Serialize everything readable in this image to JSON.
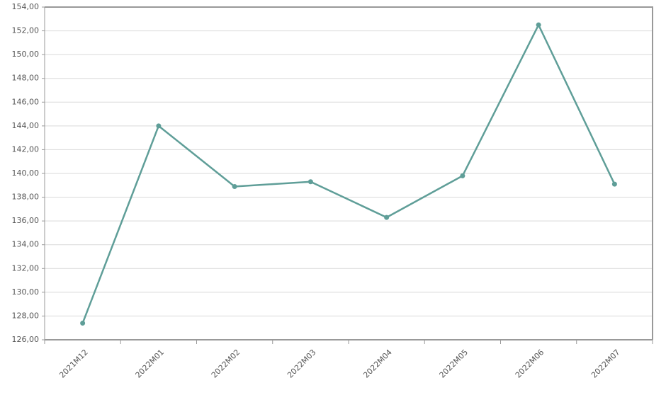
{
  "chart_data": {
    "type": "line",
    "categories": [
      "2021M12",
      "2022M01",
      "2022M02",
      "2022M03",
      "2022M04",
      "2022M05",
      "2022M06",
      "2022M07"
    ],
    "series": [
      {
        "color": "#5f9e98",
        "values": [
          127.4,
          144.0,
          138.9,
          139.3,
          136.3,
          139.8,
          152.5,
          139.1
        ]
      }
    ],
    "ylim": [
      126,
      154
    ],
    "yticks": [
      {
        "value": 126,
        "label": "126,00"
      },
      {
        "value": 128,
        "label": "128,00"
      },
      {
        "value": 130,
        "label": "130,00"
      },
      {
        "value": 132,
        "label": "132,00"
      },
      {
        "value": 134,
        "label": "134,00"
      },
      {
        "value": 136,
        "label": "136,00"
      },
      {
        "value": 138,
        "label": "138,00"
      },
      {
        "value": 140,
        "label": "140,00"
      },
      {
        "value": 142,
        "label": "142,00"
      },
      {
        "value": 144,
        "label": "144,00"
      },
      {
        "value": 146,
        "label": "146,00"
      },
      {
        "value": 148,
        "label": "148,00"
      },
      {
        "value": 150,
        "label": "150,00"
      },
      {
        "value": 152,
        "label": "152,00"
      },
      {
        "value": 154,
        "label": "154,00"
      }
    ],
    "grid": true
  }
}
